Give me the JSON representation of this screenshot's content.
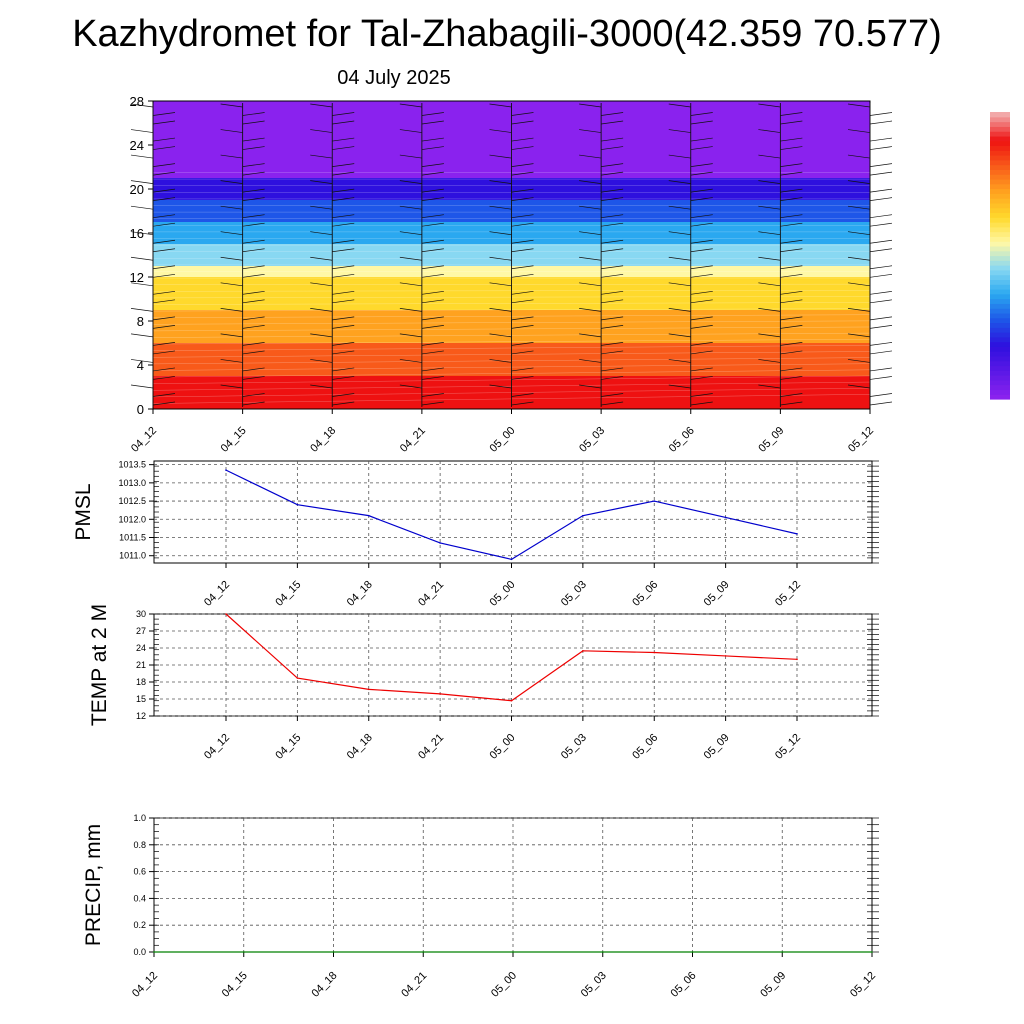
{
  "header": {
    "title": "Kazhydromet for Tal-Zhabagili-3000(42.359 70.577)",
    "date": "04 July 2025"
  },
  "chart_data": [
    {
      "type": "heatmap",
      "name": "vertical-profile",
      "x_ticks": [
        "04_12",
        "04_15",
        "04_18",
        "04_21",
        "05_00",
        "05_03",
        "05_06",
        "05_09",
        "05_12"
      ],
      "y_ticks": [
        "0",
        "4",
        "8",
        "12",
        "16",
        "20",
        "24",
        "28"
      ],
      "ylim": [
        0,
        28
      ],
      "bands": [
        {
          "from": 0,
          "to": 3,
          "color": "#ee1111"
        },
        {
          "from": 3,
          "to": 6,
          "color": "#f85a1a"
        },
        {
          "from": 6,
          "to": 9,
          "color": "#ffa21f"
        },
        {
          "from": 9,
          "to": 12,
          "color": "#ffd92c"
        },
        {
          "from": 12,
          "to": 13,
          "color": "#fff8a6"
        },
        {
          "from": 13,
          "to": 15,
          "color": "#88d8f2"
        },
        {
          "from": 15,
          "to": 17,
          "color": "#2aa8f0"
        },
        {
          "from": 17,
          "to": 19,
          "color": "#1e56e8"
        },
        {
          "from": 19,
          "to": 21,
          "color": "#2e10de"
        },
        {
          "from": 21,
          "to": 28,
          "color": "#8a22ee"
        }
      ],
      "colorbar": [
        "#8a22ee",
        "#5a18e6",
        "#2e10de",
        "#1e56e8",
        "#2aa8f0",
        "#88d8f2",
        "#fff8a6",
        "#ffd92c",
        "#ffa21f",
        "#f85a1a",
        "#ee1111",
        "#f2a8a8"
      ]
    },
    {
      "type": "line",
      "name": "pmsl",
      "ylabel": "PMSL",
      "x": [
        "04_12",
        "04_15",
        "04_18",
        "04_21",
        "05_00",
        "05_03",
        "05_06",
        "05_09",
        "05_12"
      ],
      "y_ticks": [
        "1011.0",
        "1011.5",
        "1012.0",
        "1012.5",
        "1013.0",
        "1013.5"
      ],
      "ylim": [
        1010.8,
        1013.6
      ],
      "values": [
        1013.35,
        1012.4,
        1012.1,
        1011.35,
        1010.9,
        1012.1,
        1012.5,
        1012.05,
        1011.6
      ],
      "color": "#0000cc",
      "grid": true
    },
    {
      "type": "line",
      "name": "temp",
      "ylabel": "TEMP at 2 M",
      "x": [
        "04_12",
        "04_15",
        "04_18",
        "04_21",
        "05_00",
        "05_03",
        "05_06",
        "05_09",
        "05_12"
      ],
      "y_ticks": [
        "12",
        "15",
        "18",
        "21",
        "24",
        "27",
        "30"
      ],
      "ylim": [
        12,
        30
      ],
      "values": [
        30,
        18.7,
        16.7,
        15.9,
        14.7,
        23.5,
        23.2,
        22.6,
        22.0
      ],
      "color": "#ee0000",
      "grid": true
    },
    {
      "type": "line",
      "name": "precip",
      "ylabel": "PRECIP, mm",
      "x_ticks": [
        "04_12",
        "04_15",
        "04_18",
        "04_21",
        "05_00",
        "05_03",
        "05_06",
        "05_09",
        "05_12"
      ],
      "y_ticks": [
        "0.0",
        "0.2",
        "0.4",
        "0.6",
        "0.8",
        "1.0"
      ],
      "ylim": [
        0,
        1
      ],
      "values": [
        0,
        0,
        0,
        0,
        0,
        0,
        0,
        0,
        0
      ],
      "color": "#008000",
      "grid": true
    }
  ]
}
